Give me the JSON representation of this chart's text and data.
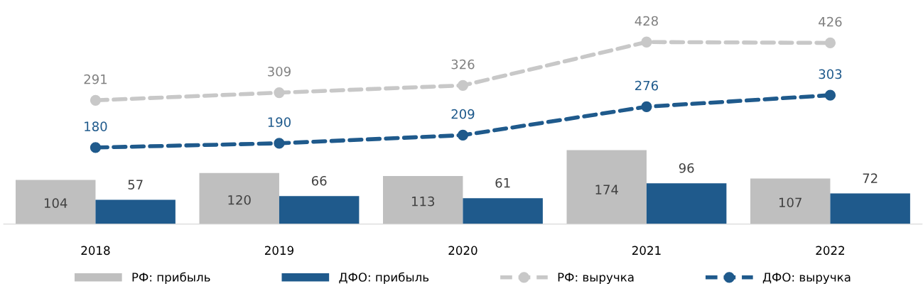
{
  "chart_data": {
    "type": "bar",
    "categories": [
      "2018",
      "2019",
      "2020",
      "2021",
      "2022"
    ],
    "series": [
      {
        "name": "РФ: прибыль",
        "color": "#bfbfbf",
        "values": [
          104,
          120,
          113,
          174,
          107
        ]
      },
      {
        "name": "ДФО: прибыль",
        "color": "#1f5a8c",
        "values": [
          57,
          66,
          61,
          96,
          72
        ]
      },
      {
        "name": "РФ: выручка",
        "type": "line",
        "color": "#c8c8c8",
        "values": [
          291,
          309,
          326,
          428,
          426
        ],
        "marker": "circle",
        "line_style": "dashed"
      },
      {
        "name": "ДФО: выручка",
        "type": "line",
        "color": "#1f5a8c",
        "values": [
          180,
          190,
          209,
          276,
          303
        ],
        "marker": "circle",
        "line_style": "dashed"
      }
    ],
    "data_labels": true,
    "legend": "bottom",
    "grid": false,
    "tick_labels": "x"
  }
}
